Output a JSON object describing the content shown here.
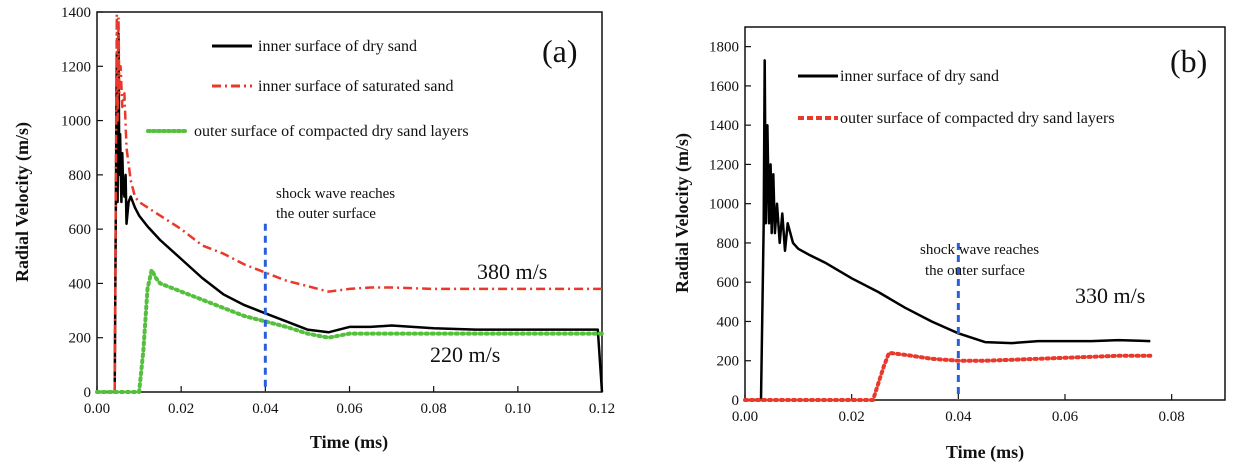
{
  "chart_data": [
    {
      "type": "line",
      "panel_label": "(a)",
      "xlabel": "Time (ms)",
      "ylabel": "Radial Velocity (m/s)",
      "xlim": [
        0,
        0.12
      ],
      "ylim": [
        0,
        1400
      ],
      "xticks": [
        "0.00",
        "0.02",
        "0.04",
        "0.06",
        "0.08",
        "0.10",
        "0.12"
      ],
      "yticks": [
        "0",
        "200",
        "400",
        "600",
        "800",
        "1000",
        "1200",
        "1400"
      ],
      "legend_placement": "top-right",
      "series": [
        {
          "name": "inner surface of dry sand",
          "color": "#000000",
          "style": "solid",
          "x": [
            0,
            0.0042,
            0.0047,
            0.0049,
            0.0051,
            0.0053,
            0.0055,
            0.0058,
            0.006,
            0.0062,
            0.0065,
            0.0068,
            0.007,
            0.0075,
            0.008,
            0.009,
            0.01,
            0.012,
            0.015,
            0.02,
            0.025,
            0.03,
            0.035,
            0.04,
            0.045,
            0.05,
            0.055,
            0.06,
            0.065,
            0.07,
            0.08,
            0.09,
            0.1,
            0.11,
            0.119,
            0.12
          ],
          "y": [
            0,
            0,
            1250,
            700,
            1320,
            800,
            950,
            700,
            880,
            760,
            720,
            800,
            620,
            700,
            720,
            680,
            650,
            610,
            560,
            490,
            420,
            360,
            320,
            290,
            260,
            230,
            220,
            240,
            240,
            245,
            235,
            230,
            230,
            230,
            230,
            0
          ]
        },
        {
          "name": "inner surface of saturated sand",
          "color": "#e8392b",
          "style": "dash-dot",
          "x": [
            0,
            0.0042,
            0.0047,
            0.0049,
            0.0051,
            0.0053,
            0.0056,
            0.006,
            0.0065,
            0.007,
            0.008,
            0.009,
            0.01,
            0.012,
            0.015,
            0.02,
            0.025,
            0.03,
            0.035,
            0.04,
            0.045,
            0.05,
            0.055,
            0.06,
            0.065,
            0.07,
            0.08,
            0.09,
            0.1,
            0.11,
            0.12
          ],
          "y": [
            0,
            0,
            1390,
            1000,
            1380,
            1100,
            1200,
            1050,
            1100,
            900,
            780,
            720,
            700,
            680,
            650,
            600,
            540,
            510,
            470,
            440,
            410,
            390,
            370,
            380,
            385,
            385,
            380,
            380,
            380,
            380,
            380
          ]
        },
        {
          "name": "outer surface of compacted dry sand layers",
          "color": "#55c03d",
          "style": "dotted",
          "x": [
            0,
            0.01,
            0.011,
            0.012,
            0.013,
            0.014,
            0.015,
            0.02,
            0.025,
            0.03,
            0.035,
            0.04,
            0.045,
            0.05,
            0.055,
            0.06,
            0.07,
            0.08,
            0.09,
            0.1,
            0.11,
            0.12
          ],
          "y": [
            0,
            0,
            150,
            380,
            450,
            420,
            400,
            370,
            340,
            310,
            280,
            260,
            240,
            215,
            200,
            215,
            215,
            215,
            215,
            215,
            215,
            215
          ]
        }
      ],
      "vline": {
        "x": 0.04,
        "ymax": 620,
        "color": "#2b5fd9"
      },
      "annotations": [
        "shock wave reaches",
        "the outer surface",
        "380 m/s",
        "220 m/s"
      ]
    },
    {
      "type": "line",
      "panel_label": "(b)",
      "xlabel": "Time (ms)",
      "ylabel": "Radial Velocity (m/s)",
      "xlim": [
        0,
        0.09
      ],
      "ylim": [
        0,
        1900
      ],
      "xticks": [
        "0.00",
        "0.02",
        "0.04",
        "0.06",
        "0.08"
      ],
      "yticks": [
        "0",
        "200",
        "400",
        "600",
        "800",
        "1000",
        "1200",
        "1400",
        "1600",
        "1800"
      ],
      "legend_placement": "top-left",
      "series": [
        {
          "name": "inner surface of dry sand",
          "color": "#000000",
          "style": "solid",
          "x": [
            0,
            0.003,
            0.0035,
            0.0037,
            0.0039,
            0.0042,
            0.0045,
            0.0048,
            0.005,
            0.0053,
            0.0056,
            0.006,
            0.0065,
            0.007,
            0.0075,
            0.008,
            0.009,
            0.01,
            0.012,
            0.015,
            0.02,
            0.025,
            0.03,
            0.035,
            0.04,
            0.045,
            0.05,
            0.055,
            0.06,
            0.065,
            0.07,
            0.076
          ],
          "y": [
            0,
            0,
            900,
            1730,
            900,
            1400,
            900,
            1200,
            850,
            1150,
            850,
            1000,
            800,
            950,
            760,
            900,
            800,
            770,
            740,
            700,
            620,
            550,
            470,
            400,
            340,
            295,
            290,
            300,
            300,
            300,
            305,
            300
          ]
        },
        {
          "name": "outer surface of compacted dry sand layers",
          "color": "#e8392b",
          "style": "dotted",
          "x": [
            0,
            0.024,
            0.026,
            0.027,
            0.03,
            0.035,
            0.04,
            0.045,
            0.05,
            0.055,
            0.06,
            0.065,
            0.07,
            0.076
          ],
          "y": [
            0,
            0,
            170,
            240,
            230,
            210,
            200,
            200,
            205,
            210,
            215,
            220,
            225,
            225
          ]
        }
      ],
      "vline": {
        "x": 0.04,
        "ymax": 800,
        "color": "#2b5fd9"
      },
      "annotations": [
        "shock wave reaches",
        "the outer surface",
        "330 m/s"
      ]
    }
  ]
}
